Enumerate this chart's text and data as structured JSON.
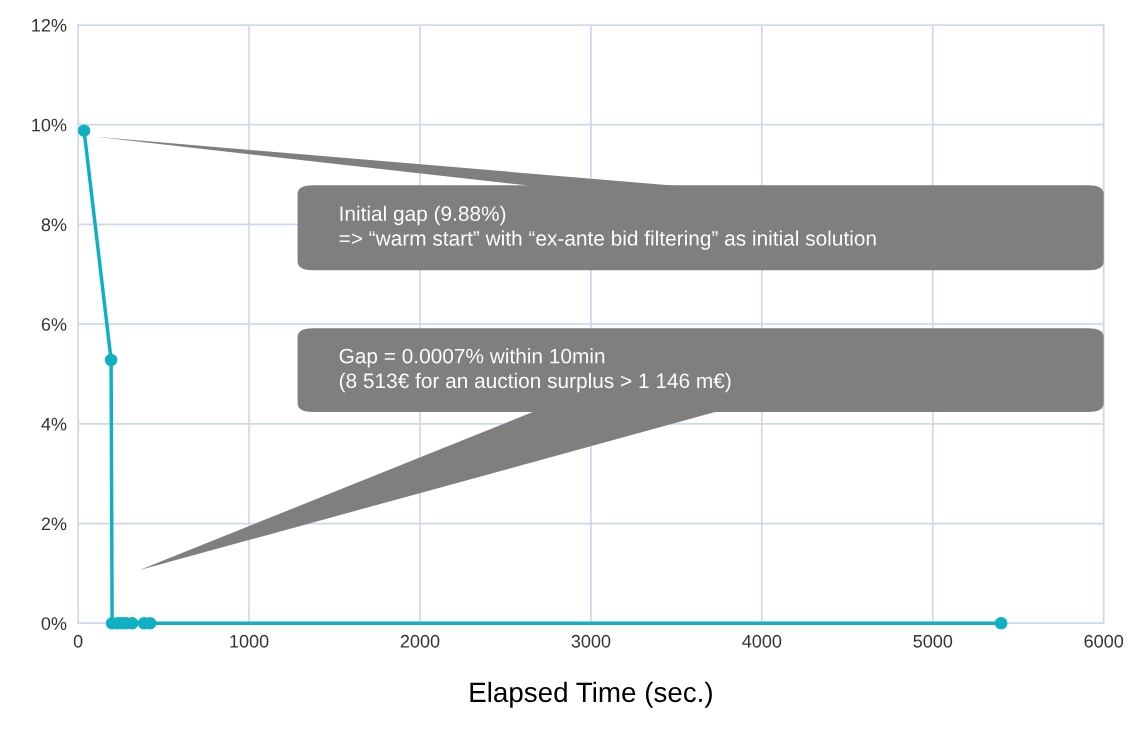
{
  "chart_data": {
    "type": "line",
    "xlabel": "Elapsed Time (sec.)",
    "x": [
      35,
      193,
      199,
      234,
      258,
      281,
      316,
      386,
      421,
      5400
    ],
    "series": [
      {
        "color": "#0fb0c4",
        "values": [
          9.88,
          5.28,
          0,
          0,
          0,
          0,
          0,
          0,
          0,
          0
        ]
      }
    ],
    "xlim": [
      0,
      6000
    ],
    "xticks": [
      0,
      1000,
      2000,
      3000,
      4000,
      5000,
      6000
    ],
    "ylim": [
      0,
      12
    ],
    "yticks": [
      {
        "value": 0,
        "label": "0%"
      },
      {
        "value": 2,
        "label": "2%"
      },
      {
        "value": 4,
        "label": "4%"
      },
      {
        "value": 6,
        "label": "6%"
      },
      {
        "value": 8,
        "label": "8%"
      },
      {
        "value": 10,
        "label": "10%"
      },
      {
        "value": 12,
        "label": "12%"
      }
    ],
    "grid": true,
    "marker": "circle",
    "line_style": "solid",
    "legend": false,
    "annotations": [
      "Initial gap (9.88%)\n=> “warm start” with “ex-ante bid filtering” as initial solution",
      "Gap = 0.0007% within 10min\n(8 513€ for an auction surplus > 1 146 m€)"
    ]
  }
}
